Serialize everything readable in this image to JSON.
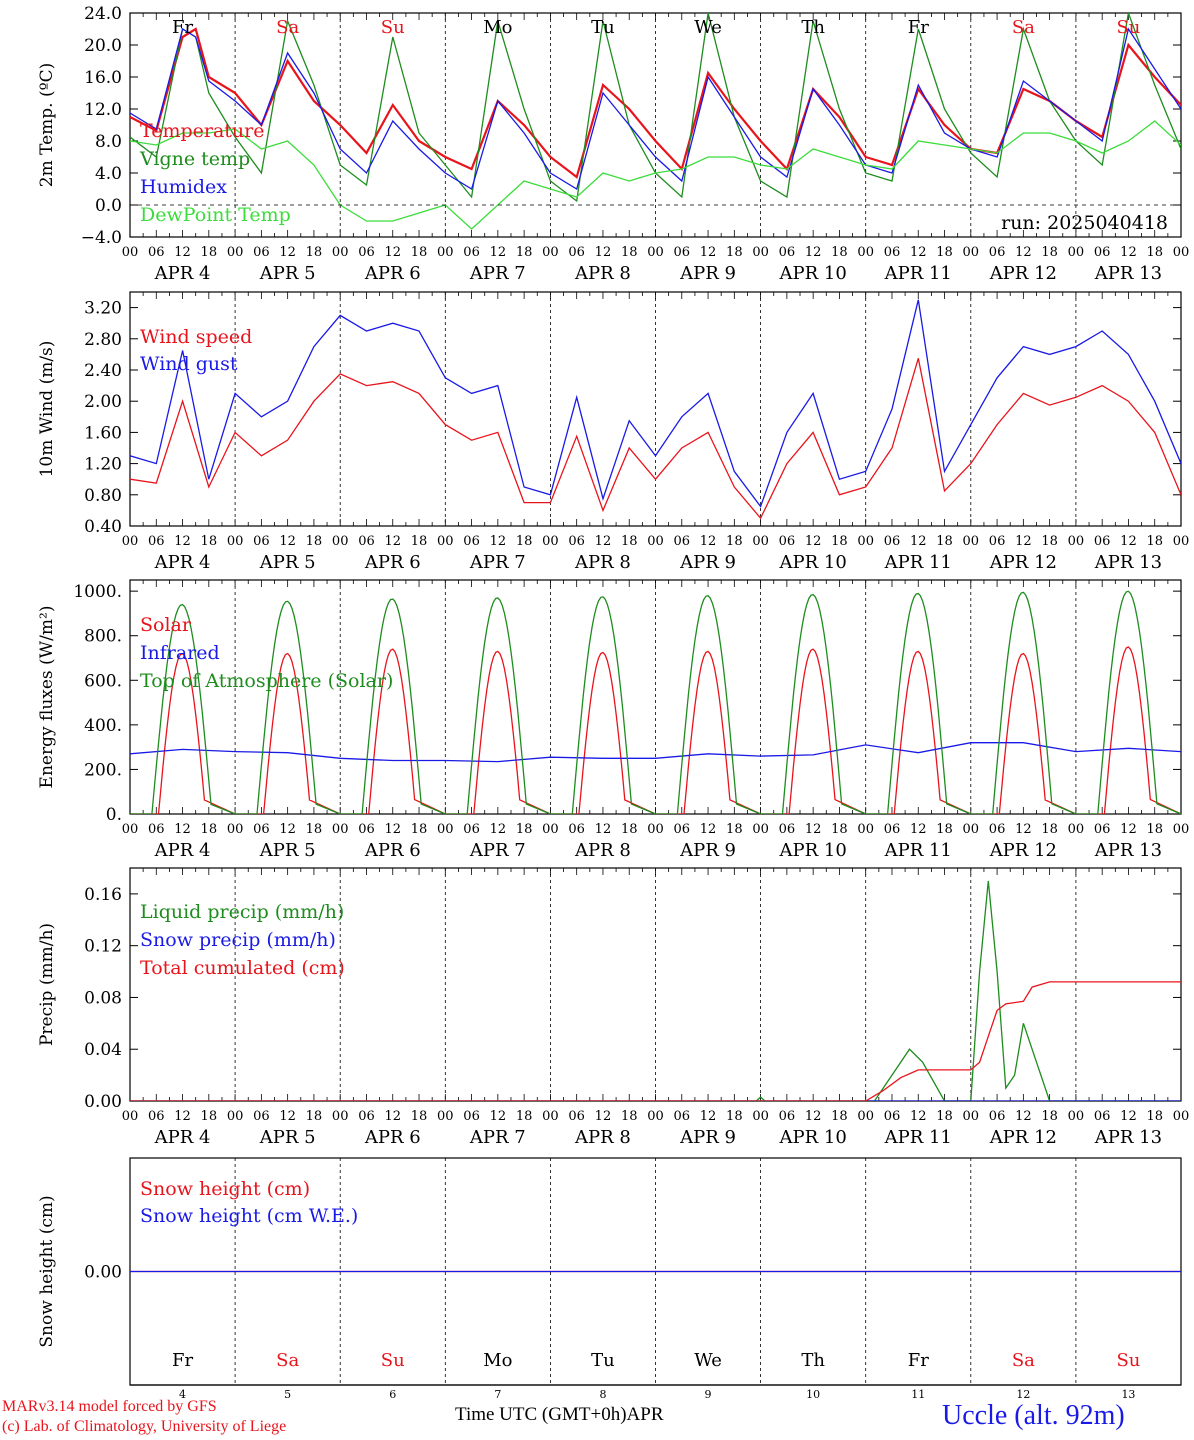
{
  "run_label": "run: 2025040418",
  "days": {
    "hour_ticks": [
      "00",
      "06",
      "12",
      "18"
    ],
    "month": "APR",
    "dates": [
      "4",
      "5",
      "6",
      "7",
      "8",
      "9",
      "10",
      "11",
      "12",
      "13"
    ],
    "weekdays": [
      "Fr",
      "Sa",
      "Su",
      "Mo",
      "Tu",
      "We",
      "Th",
      "Fr",
      "Sa",
      "Su"
    ],
    "weekend_flags": [
      false,
      true,
      true,
      false,
      false,
      false,
      false,
      false,
      true,
      true
    ]
  },
  "colors": {
    "red": "#e8141c",
    "green": "#1e8c1e",
    "blue": "#1a1ae6",
    "light_green": "#3cdc3c",
    "weekend": "#e8141c",
    "weekday": "#000000"
  },
  "chart_data": [
    {
      "type": "line",
      "ylabel": "2m Temp. (ºC)",
      "ylim": [
        -4,
        24
      ],
      "yticks": [
        "24.0",
        "20.0",
        "16.0",
        "12.0",
        "8.0",
        "4.0",
        "0.0",
        "−4.0"
      ],
      "x_unit": "hours since APR 4 00 UTC",
      "series": [
        {
          "name": "Temperature",
          "color": "red",
          "x": [
            0,
            6,
            12,
            15,
            18,
            24,
            30,
            36,
            42,
            48,
            54,
            60,
            66,
            72,
            78,
            84,
            90,
            96,
            102,
            108,
            114,
            120,
            126,
            132,
            138,
            144,
            150,
            156,
            162,
            168,
            174,
            180,
            186,
            192,
            198,
            204,
            210,
            216,
            222,
            228,
            234,
            240
          ],
          "values": [
            11,
            9.3,
            21,
            22,
            16,
            14,
            10,
            18,
            13,
            10,
            6.5,
            12.5,
            8,
            6,
            4.5,
            13,
            10,
            6,
            3.5,
            15,
            12,
            8,
            4.5,
            16.5,
            12,
            8,
            4.5,
            14.5,
            11,
            6,
            5,
            14.5,
            10,
            7,
            6.5,
            14.5,
            13,
            10.5,
            8.5,
            20,
            16,
            12.5
          ]
        },
        {
          "name": "Vigne temp",
          "color": "green",
          "x": [
            0,
            6,
            12,
            15,
            18,
            24,
            30,
            36,
            42,
            48,
            54,
            60,
            66,
            72,
            78,
            84,
            90,
            96,
            102,
            108,
            114,
            120,
            126,
            132,
            138,
            144,
            150,
            156,
            162,
            168,
            174,
            180,
            186,
            192,
            198,
            204,
            210,
            216,
            222,
            228,
            234,
            240
          ],
          "values": [
            8.5,
            6,
            22,
            21,
            14,
            8.5,
            4,
            23,
            15,
            5,
            2.5,
            21,
            9,
            5,
            1,
            23,
            12,
            3,
            0.5,
            23,
            10,
            4,
            1,
            24,
            11,
            3,
            1,
            23,
            12,
            4,
            3,
            22,
            12,
            6.5,
            3.5,
            22,
            13,
            8,
            5,
            24,
            15,
            7
          ]
        },
        {
          "name": "Humidex",
          "color": "blue",
          "x": [
            0,
            6,
            12,
            15,
            18,
            24,
            30,
            36,
            42,
            48,
            54,
            60,
            66,
            72,
            78,
            84,
            90,
            96,
            102,
            108,
            114,
            120,
            126,
            132,
            138,
            144,
            150,
            156,
            162,
            168,
            174,
            180,
            186,
            192,
            198,
            204,
            210,
            216,
            222,
            228,
            234,
            240
          ],
          "values": [
            11.5,
            9.5,
            22,
            21,
            15.5,
            13,
            10,
            19,
            14,
            7,
            4,
            10.5,
            7,
            4,
            2,
            13,
            9,
            4,
            2,
            14,
            10,
            6,
            3,
            16,
            11,
            6,
            3.5,
            14.5,
            10,
            5,
            4,
            15,
            9,
            7,
            6,
            15.5,
            13,
            10.5,
            8,
            22,
            17,
            12
          ]
        },
        {
          "name": "DewPoint Temp",
          "color": "light_green",
          "x": [
            0,
            6,
            12,
            18,
            24,
            30,
            36,
            42,
            48,
            54,
            60,
            66,
            72,
            78,
            84,
            90,
            96,
            102,
            108,
            114,
            120,
            126,
            132,
            138,
            144,
            150,
            156,
            162,
            168,
            174,
            180,
            186,
            192,
            198,
            204,
            210,
            216,
            222,
            228,
            234,
            240
          ],
          "values": [
            8,
            7.5,
            9,
            9,
            9.5,
            7,
            8,
            5,
            0,
            -2,
            -2,
            -1,
            0,
            -3,
            0,
            3,
            2,
            1,
            4,
            3,
            4,
            4.5,
            6,
            6,
            5,
            4.5,
            7,
            6,
            5,
            4.5,
            8,
            7.5,
            7,
            6.5,
            9,
            9,
            8,
            6.5,
            8,
            10.5,
            7.5
          ]
        }
      ]
    },
    {
      "type": "line",
      "ylabel": "10m Wind (m/s)",
      "ylim": [
        0.4,
        3.4
      ],
      "yticks": [
        "3.20",
        "2.80",
        "2.40",
        "2.00",
        "1.60",
        "1.20",
        "0.80",
        "0.40"
      ],
      "x_unit": "hours since APR 4 00 UTC",
      "series": [
        {
          "name": "Wind speed",
          "color": "red",
          "x": [
            0,
            6,
            12,
            18,
            24,
            30,
            36,
            42,
            48,
            54,
            60,
            66,
            72,
            78,
            84,
            90,
            96,
            102,
            108,
            114,
            120,
            126,
            132,
            138,
            144,
            150,
            156,
            162,
            168,
            174,
            180,
            186,
            192,
            198,
            204,
            210,
            216,
            222,
            228,
            234,
            240
          ],
          "values": [
            1.0,
            0.95,
            2.0,
            0.9,
            1.6,
            1.3,
            1.5,
            2.0,
            2.35,
            2.2,
            2.25,
            2.1,
            1.7,
            1.5,
            1.6,
            0.7,
            0.7,
            1.55,
            0.6,
            1.4,
            1.0,
            1.4,
            1.6,
            0.9,
            0.5,
            1.2,
            1.6,
            0.8,
            0.9,
            1.4,
            2.55,
            0.85,
            1.2,
            1.7,
            2.1,
            1.95,
            2.05,
            2.2,
            2.0,
            1.6,
            0.8
          ]
        },
        {
          "name": "Wind gust",
          "color": "blue",
          "x": [
            0,
            6,
            12,
            18,
            24,
            30,
            36,
            42,
            48,
            54,
            60,
            66,
            72,
            78,
            84,
            90,
            96,
            102,
            108,
            114,
            120,
            126,
            132,
            138,
            144,
            150,
            156,
            162,
            168,
            174,
            180,
            186,
            192,
            198,
            204,
            210,
            216,
            222,
            228,
            234,
            240
          ],
          "values": [
            1.3,
            1.2,
            2.65,
            1.0,
            2.1,
            1.8,
            2.0,
            2.7,
            3.1,
            2.9,
            3.0,
            2.9,
            2.3,
            2.1,
            2.2,
            0.9,
            0.8,
            2.05,
            0.75,
            1.75,
            1.3,
            1.8,
            2.1,
            1.1,
            0.65,
            1.6,
            2.1,
            1.0,
            1.1,
            1.9,
            3.3,
            1.1,
            1.7,
            2.3,
            2.7,
            2.6,
            2.7,
            2.9,
            2.6,
            2.0,
            1.2
          ]
        }
      ]
    },
    {
      "type": "line",
      "ylabel": "Energy fluxes (W/m²)",
      "ylim": [
        0,
        1050
      ],
      "yticks": [
        "1000.",
        "800.",
        "600.",
        "400.",
        "200.",
        "0."
      ],
      "x_unit": "hours since APR 4 00 UTC",
      "series": [
        {
          "name": "Solar",
          "color": "red",
          "daily_peaks": [
            720,
            720,
            740,
            730,
            725,
            730,
            740,
            730,
            720,
            750
          ]
        },
        {
          "name": "Infrared",
          "color": "blue",
          "x": [
            0,
            12,
            24,
            36,
            48,
            60,
            72,
            84,
            96,
            108,
            120,
            132,
            144,
            156,
            168,
            180,
            192,
            204,
            216,
            228,
            240
          ],
          "values": [
            270,
            290,
            280,
            275,
            250,
            240,
            240,
            235,
            255,
            250,
            250,
            270,
            260,
            265,
            310,
            275,
            320,
            320,
            280,
            295,
            280
          ]
        },
        {
          "name": "Top of Atmosphere (Solar)",
          "color": "green",
          "daily_peaks": [
            940,
            955,
            965,
            970,
            975,
            980,
            985,
            990,
            995,
            1000
          ]
        }
      ]
    },
    {
      "type": "line",
      "ylabel": "Precip (mm/h)",
      "ylim": [
        0,
        0.18
      ],
      "yticks": [
        "0.16",
        "0.12",
        "0.08",
        "0.04",
        "0.00"
      ],
      "x_unit": "hours since APR 4 00 UTC",
      "series": [
        {
          "name": "Liquid precip (mm/h)",
          "color": "green",
          "x": [
            0,
            143,
            144,
            145,
            170,
            175,
            178,
            181,
            186,
            192,
            194,
            196,
            198,
            200,
            202,
            204,
            206,
            210,
            240
          ],
          "values": [
            0,
            0,
            0.003,
            0,
            0,
            0.025,
            0.04,
            0.03,
            0,
            0,
            0.1,
            0.17,
            0.1,
            0.01,
            0.02,
            0.06,
            0.04,
            0,
            0
          ]
        },
        {
          "name": "Snow precip (mm/h)",
          "color": "blue",
          "x": [
            0,
            240
          ],
          "values": [
            0,
            0
          ]
        },
        {
          "name": "Total cumulated (cm)",
          "color": "red",
          "x": [
            0,
            168,
            172,
            176,
            180,
            184,
            192,
            194,
            196,
            198,
            200,
            204,
            206,
            210,
            240
          ],
          "values": [
            0,
            0,
            0.008,
            0.018,
            0.024,
            0.024,
            0.024,
            0.03,
            0.05,
            0.07,
            0.075,
            0.077,
            0.088,
            0.092,
            0.092
          ]
        }
      ]
    },
    {
      "type": "line",
      "ylabel": "Snow height (cm)",
      "ylim": [
        -1,
        1
      ],
      "yticks": [
        "0.00"
      ],
      "x_unit": "hours since APR 4 00 UTC",
      "series": [
        {
          "name": "Snow height (cm)",
          "color": "red",
          "x": [
            0,
            240
          ],
          "values": [
            0,
            0
          ]
        },
        {
          "name": "Snow height (cm W.E.)",
          "color": "blue",
          "x": [
            0,
            240
          ],
          "values": [
            0,
            0
          ]
        }
      ]
    }
  ],
  "footer": {
    "model_line": "MARv3.14 model forced by GFS",
    "copyright_line": "(c) Lab. of Climatology, University of Liege",
    "x_title": "Time UTC (GMT+0h)",
    "month": "APR",
    "station": "Uccle (alt. 92m)"
  }
}
